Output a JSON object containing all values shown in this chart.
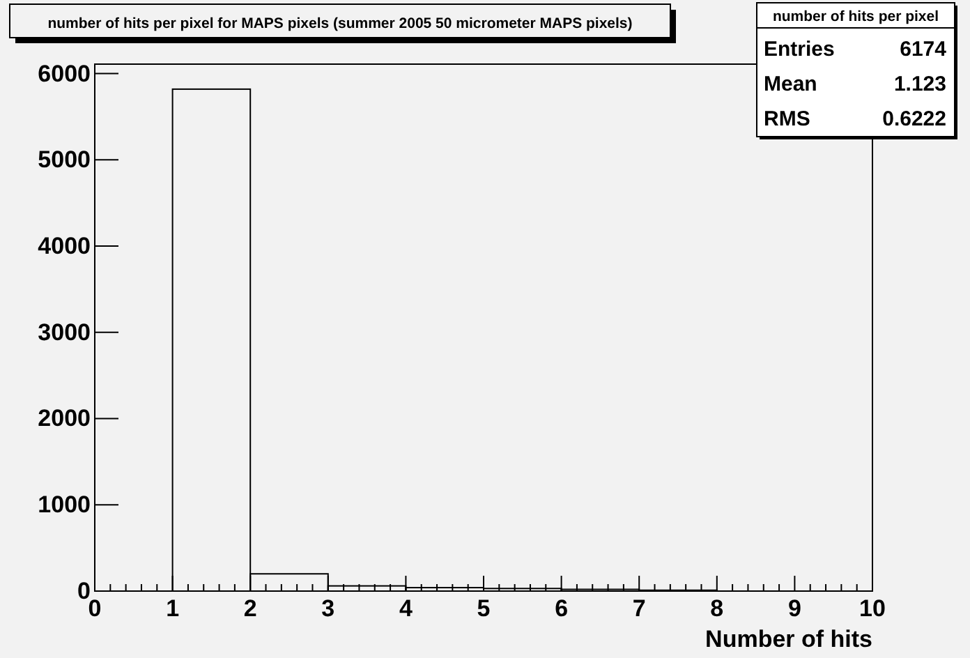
{
  "chart_data": {
    "type": "histogram",
    "title": "number of hits per pixel for MAPS pixels (summer 2005 50 micrometer MAPS pixels)",
    "xlabel": "Number of hits",
    "bins": [
      0,
      1,
      2,
      3,
      4,
      5,
      6,
      7,
      8,
      9,
      10
    ],
    "values": [
      0,
      5820,
      200,
      60,
      40,
      30,
      20,
      10,
      0,
      0
    ],
    "color": "#000000",
    "xlim": [
      0,
      10
    ],
    "xticks": [
      0,
      1,
      2,
      3,
      4,
      5,
      6,
      7,
      8,
      9,
      10
    ],
    "ylim": [
      0,
      6110
    ],
    "yticks": [
      0,
      1000,
      2000,
      3000,
      4000,
      5000,
      6000
    ],
    "grid": false,
    "annotations": [
      "number of hits per pixel",
      "Entries",
      "6174",
      "Mean",
      "1.123",
      "RMS",
      "0.6222"
    ]
  }
}
